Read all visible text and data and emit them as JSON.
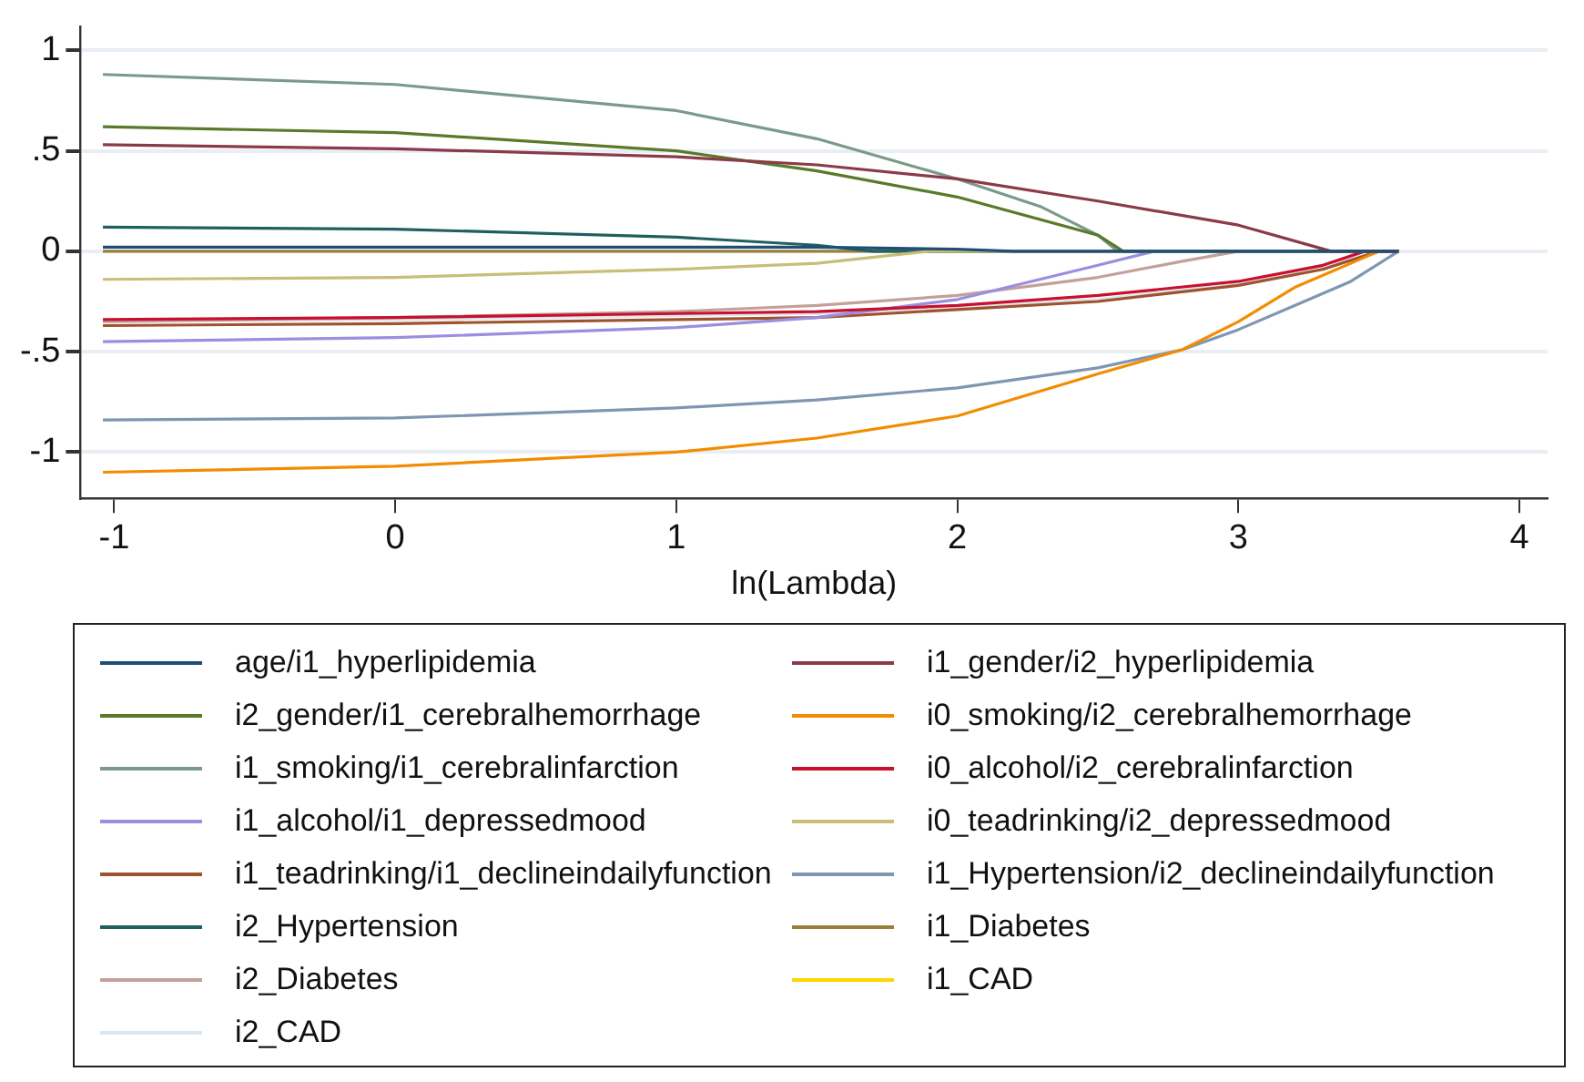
{
  "chart_data": {
    "type": "line",
    "xlabel": "ln(Lambda)",
    "xlim": [
      -1.12,
      4.1
    ],
    "ylim": [
      -1.23,
      1.12
    ],
    "xticks": [
      -1,
      0,
      1,
      2,
      3,
      4
    ],
    "yticks": [
      {
        "value": -1,
        "label": "-1"
      },
      {
        "value": -0.5,
        "label": "-.5"
      },
      {
        "value": 0,
        "label": "0"
      },
      {
        "value": 0.5,
        "label": ".5"
      },
      {
        "value": 1,
        "label": "1"
      }
    ],
    "grid": "y",
    "legend": "bottom",
    "marker": "none",
    "line_style": "solid",
    "series": [
      {
        "name": "age/i1_hyperlipidemia",
        "color": "#1f4e79",
        "x": [
          -1.04,
          0,
          1,
          1.5,
          2,
          2.2,
          3.57
        ],
        "values": [
          0.02,
          0.02,
          0.02,
          0.02,
          0.01,
          0,
          0
        ]
      },
      {
        "name": "i1_gender/i2_hyperlipidemia",
        "color": "#8b3a4a",
        "x": [
          -1.04,
          0,
          1,
          1.5,
          2,
          2.5,
          3,
          3.33,
          3.57
        ],
        "values": [
          0.53,
          0.51,
          0.47,
          0.43,
          0.36,
          0.25,
          0.13,
          0,
          0
        ]
      },
      {
        "name": "i2_gender/i1_cerebralhemorrhage",
        "color": "#5a7a2a",
        "x": [
          -1.04,
          0,
          1,
          1.5,
          2,
          2.5,
          2.59,
          3.57
        ],
        "values": [
          0.62,
          0.59,
          0.5,
          0.4,
          0.27,
          0.08,
          0,
          0
        ]
      },
      {
        "name": "i0_smoking/i2_cerebralhemorrhage",
        "color": "#f28c00",
        "x": [
          -1.04,
          0,
          1,
          1.5,
          2,
          2.5,
          2.8,
          3,
          3.2,
          3.4,
          3.5,
          3.57
        ],
        "values": [
          -1.1,
          -1.07,
          -1,
          -0.93,
          -0.82,
          -0.61,
          -0.49,
          -0.35,
          -0.18,
          -0.06,
          0,
          0
        ]
      },
      {
        "name": "i1_smoking/i1_cerebralinfarction",
        "color": "#7a9a8a",
        "x": [
          -1.04,
          0,
          1,
          1.5,
          2,
          2.3,
          2.5,
          2.57,
          3.57
        ],
        "values": [
          0.88,
          0.83,
          0.7,
          0.56,
          0.36,
          0.22,
          0.08,
          0,
          0
        ]
      },
      {
        "name": "i0_alcohol/i2_cerebralinfarction",
        "color": "#c8102e",
        "x": [
          -1.04,
          0,
          1,
          1.5,
          2,
          2.5,
          3,
          3.3,
          3.45,
          3.57
        ],
        "values": [
          -0.34,
          -0.33,
          -0.31,
          -0.3,
          -0.27,
          -0.22,
          -0.15,
          -0.07,
          0,
          0
        ]
      },
      {
        "name": "i1_alcohol/i1_depressedmood",
        "color": "#9a8ee0",
        "x": [
          -1.04,
          0,
          1,
          1.5,
          2,
          2.5,
          2.7,
          3.57
        ],
        "values": [
          -0.45,
          -0.43,
          -0.38,
          -0.33,
          -0.24,
          -0.07,
          0,
          0
        ]
      },
      {
        "name": "i0_teadrinking/i2_depressedmood",
        "color": "#c8be78",
        "x": [
          -1.04,
          0,
          1,
          1.5,
          1.9,
          3.57
        ],
        "values": [
          -0.14,
          -0.13,
          -0.09,
          -0.06,
          0,
          0
        ]
      },
      {
        "name": "i1_teadrinking/i1_declineindailyfunction",
        "color": "#a0522d",
        "x": [
          -1.04,
          0,
          1,
          1.5,
          2,
          2.5,
          3,
          3.3,
          3.5,
          3.57
        ],
        "values": [
          -0.37,
          -0.36,
          -0.34,
          -0.33,
          -0.29,
          -0.25,
          -0.17,
          -0.09,
          0,
          0
        ]
      },
      {
        "name": "i1_Hypertension/i2_declineindailyfunction",
        "color": "#7f96b2",
        "x": [
          -1.04,
          0,
          1,
          1.5,
          2,
          2.5,
          2.8,
          3,
          3.2,
          3.4,
          3.57
        ],
        "values": [
          -0.84,
          -0.83,
          -0.78,
          -0.74,
          -0.68,
          -0.58,
          -0.49,
          -0.39,
          -0.27,
          -0.15,
          0
        ]
      },
      {
        "name": "i2_Hypertension",
        "color": "#1f5f5f",
        "x": [
          -1.04,
          0,
          1,
          1.5,
          1.7,
          3.57
        ],
        "values": [
          0.12,
          0.11,
          0.07,
          0.03,
          0,
          0
        ]
      },
      {
        "name": "i1_Diabetes",
        "color": "#9a7f3a",
        "x": [
          -1.04,
          3.57
        ],
        "values": [
          0,
          0
        ]
      },
      {
        "name": "i2_Diabetes",
        "color": "#c4a09a",
        "x": [
          -1.04,
          0,
          1,
          1.5,
          2,
          2.5,
          2.8,
          3,
          3.57
        ],
        "values": [
          -0.35,
          -0.33,
          -0.3,
          -0.27,
          -0.22,
          -0.13,
          -0.05,
          0,
          0
        ]
      },
      {
        "name": "i1_CAD",
        "color": "#ffd700"
      },
      {
        "name": "i2_CAD",
        "color": "#dce6ee",
        "x": [
          -1.04,
          0,
          1,
          1.5,
          2,
          2.5,
          3,
          3.3,
          3.5,
          3.57
        ],
        "values": [
          -0.35,
          -0.34,
          -0.32,
          -0.31,
          -0.28,
          -0.24,
          -0.16,
          -0.08,
          0,
          0
        ]
      }
    ]
  }
}
